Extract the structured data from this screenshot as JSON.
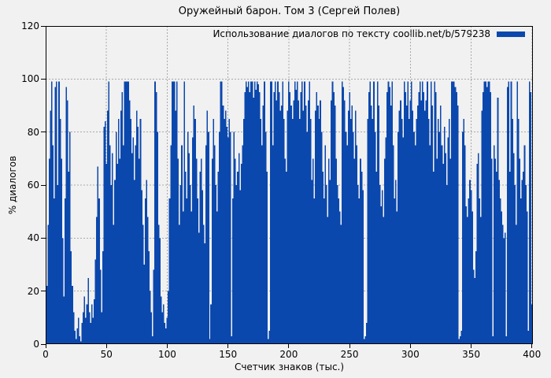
{
  "colors": {
    "bar": "#0b48ad",
    "grid": "#a9a9a9",
    "border": "#000000",
    "background": "#f1f1f1",
    "text": "#000000"
  },
  "chart_data": {
    "type": "bar",
    "title": "Оружейный барон. Том 3 (Сергей Полев)",
    "legend": "Использование диалогов по тексту coollib.net/b/579238",
    "xlabel": "Счетчик знаков (тыс.)",
    "ylabel": "% диалогов",
    "xlim": [
      0,
      400.8
    ],
    "ylim": [
      0,
      120
    ],
    "x_ticks": [
      0,
      50,
      100,
      150,
      200,
      250,
      300,
      350,
      400
    ],
    "y_ticks": [
      0,
      20,
      40,
      60,
      80,
      100,
      120
    ],
    "grid": true,
    "legend_position": "top-right",
    "x_start": 0,
    "x_step": 1,
    "values": [
      13,
      22,
      45,
      70,
      88,
      99,
      75,
      55,
      97,
      99,
      60,
      99,
      85,
      70,
      40,
      18,
      55,
      97,
      92,
      65,
      80,
      35,
      22,
      12,
      5,
      2,
      6,
      10,
      3,
      1,
      8,
      12,
      18,
      10,
      15,
      25,
      12,
      8,
      15,
      10,
      17,
      32,
      48,
      67,
      55,
      28,
      12,
      35,
      82,
      84,
      68,
      88,
      99,
      75,
      60,
      72,
      45,
      62,
      80,
      68,
      85,
      70,
      88,
      95,
      75,
      99,
      99,
      99,
      99,
      92,
      85,
      72,
      78,
      62,
      75,
      88,
      82,
      70,
      85,
      58,
      45,
      30,
      55,
      62,
      48,
      35,
      20,
      12,
      3,
      28,
      99,
      95,
      80,
      45,
      40,
      18,
      12,
      15,
      8,
      6,
      10,
      20,
      55,
      75,
      99,
      99,
      99,
      88,
      99,
      70,
      45,
      60,
      75,
      50,
      99,
      65,
      55,
      80,
      72,
      60,
      50,
      78,
      90,
      85,
      70,
      55,
      42,
      65,
      70,
      58,
      45,
      38,
      75,
      88,
      80,
      2,
      15,
      70,
      85,
      75,
      60,
      50,
      65,
      80,
      99,
      99,
      90,
      85,
      88,
      82,
      78,
      85,
      80,
      3,
      55,
      80,
      70,
      60,
      65,
      72,
      58,
      68,
      75,
      85,
      95,
      99,
      97,
      99,
      95,
      99,
      99,
      93,
      99,
      96,
      99,
      98,
      95,
      85,
      75,
      90,
      99,
      80,
      65,
      2,
      5,
      99,
      99,
      75,
      95,
      99,
      92,
      99,
      95,
      88,
      90,
      99,
      85,
      70,
      65,
      88,
      99,
      95,
      90,
      85,
      92,
      99,
      96,
      99,
      92,
      85,
      95,
      99,
      88,
      99,
      90,
      80,
      92,
      99,
      85,
      62,
      70,
      55,
      88,
      95,
      90,
      85,
      92,
      80,
      65,
      55,
      75,
      60,
      48,
      70,
      62,
      92,
      99,
      95,
      90,
      70,
      60,
      55,
      50,
      45,
      99,
      97,
      92,
      80,
      75,
      88,
      95,
      85,
      90,
      80,
      70,
      88,
      75,
      60,
      55,
      70,
      65,
      58,
      2,
      3,
      8,
      85,
      95,
      99,
      90,
      85,
      99,
      80,
      65,
      99,
      90,
      60,
      52,
      58,
      48,
      70,
      78,
      95,
      99,
      97,
      90,
      99,
      75,
      55,
      62,
      50,
      80,
      88,
      92,
      85,
      78,
      99,
      95,
      90,
      99,
      85,
      92,
      99,
      88,
      80,
      75,
      85,
      90,
      95,
      99,
      92,
      99,
      95,
      88,
      92,
      99,
      85,
      75,
      99,
      90,
      65,
      99,
      95,
      70,
      85,
      80,
      90,
      75,
      68,
      82,
      72,
      60,
      78,
      85,
      70,
      99,
      99,
      99,
      97,
      95,
      90,
      2,
      3,
      5,
      80,
      85,
      75,
      52,
      48,
      55,
      62,
      58,
      50,
      28,
      25,
      35,
      68,
      72,
      55,
      48,
      88,
      95,
      99,
      99,
      97,
      99,
      99,
      95,
      70,
      3,
      75,
      70,
      65,
      93,
      62,
      55,
      50,
      45,
      40,
      42,
      3,
      97,
      99,
      65,
      99,
      85,
      72,
      60,
      45,
      99,
      85,
      70,
      55,
      62,
      65,
      75,
      60,
      50,
      5,
      99,
      95,
      15
    ]
  }
}
